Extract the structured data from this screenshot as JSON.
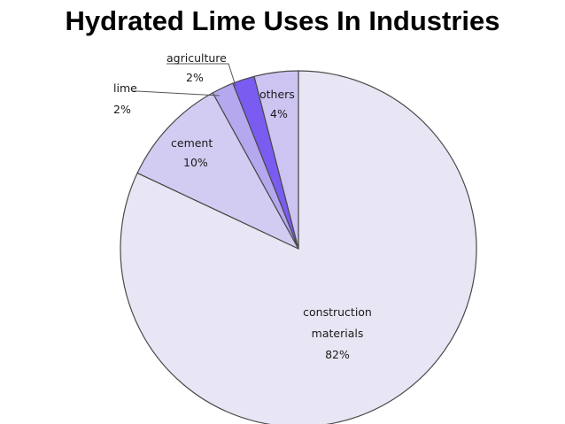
{
  "chart_data": {
    "type": "pie",
    "title": "Hydrated Lime Uses In Industries",
    "start": "12 o'clock",
    "direction": "clockwise",
    "slices": [
      {
        "name": "construction materials",
        "label_lines": [
          "construction",
          "materials"
        ],
        "value": 82,
        "value_label": "82%",
        "color": "#e8e6f4"
      },
      {
        "name": "cement",
        "label_lines": [
          "cement"
        ],
        "value": 10,
        "value_label": "10%",
        "color": "#d3ccf2"
      },
      {
        "name": "lime",
        "label_lines": [
          "lime"
        ],
        "value": 2,
        "value_label": "2%",
        "color": "#b6a8ef"
      },
      {
        "name": "agriculture",
        "label_lines": [
          "agriculture"
        ],
        "value": 2,
        "value_label": "2%",
        "color": "#7a5cf0"
      },
      {
        "name": "others",
        "label_lines": [
          "others"
        ],
        "value": 4,
        "value_label": "4%",
        "color": "#cdc4f2"
      }
    ],
    "outline_color": "#4a4a4a"
  }
}
